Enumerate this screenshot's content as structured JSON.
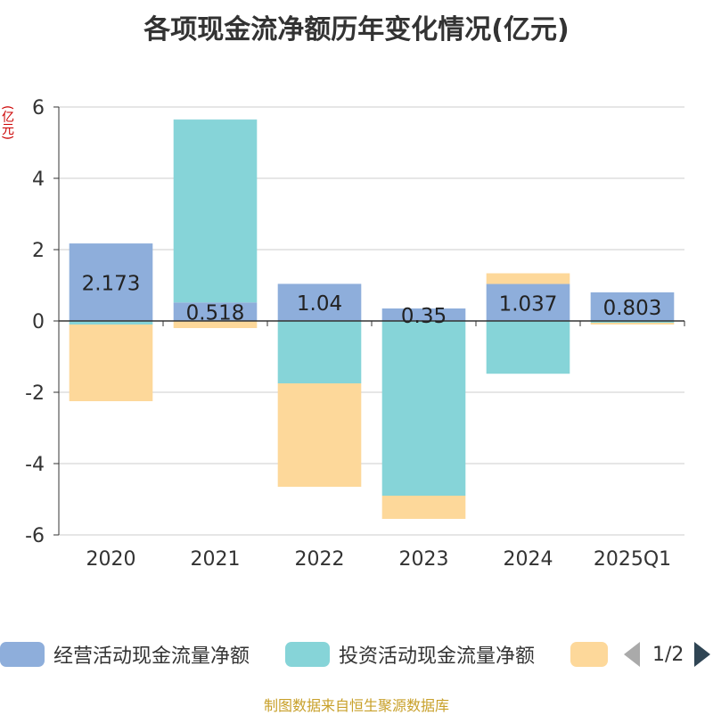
{
  "chart_data": {
    "type": "bar",
    "stacked": true,
    "title": "各项现金流净额历年变化情况(亿元)",
    "ylabel": "(亿元)",
    "categories": [
      "2020",
      "2021",
      "2022",
      "2023",
      "2024",
      "2025Q1"
    ],
    "ylim": [
      -6,
      6
    ],
    "yticks": [
      6,
      4,
      2,
      0,
      -2,
      -4,
      -6
    ],
    "series": [
      {
        "name": "经营活动现金流量净额",
        "color": "#8eaedb",
        "values": [
          2.173,
          0.518,
          1.04,
          0.35,
          1.037,
          0.803
        ],
        "show_labels": true
      },
      {
        "name": "投资活动现金流量净额",
        "color": "#86d4d8",
        "values": [
          -0.1,
          5.13,
          -1.75,
          -4.9,
          -1.48,
          -0.05
        ],
        "show_labels": false
      },
      {
        "name": "",
        "color": "#fdd89a",
        "values": [
          -2.15,
          -0.2,
          -2.9,
          -0.65,
          0.3,
          -0.05
        ],
        "show_labels": false
      }
    ],
    "legend": {
      "position": "bottom",
      "page": "1/2"
    }
  },
  "source": "制图数据来自恒生聚源数据库"
}
